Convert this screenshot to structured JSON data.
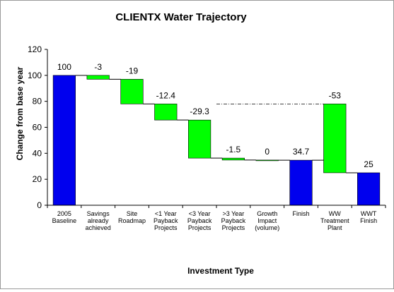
{
  "chart_data": {
    "type": "bar",
    "subtype": "waterfall",
    "title": "CLIENTX Water Trajectory",
    "xlabel": "Investment Type",
    "ylabel": "Change from base year",
    "ylim": [
      0,
      120
    ],
    "yticks": [
      "0",
      "20",
      "40",
      "60",
      "80",
      "100",
      "120"
    ],
    "ytick_values": [
      0,
      20,
      40,
      60,
      80,
      100,
      120
    ],
    "grid": false,
    "legend": "none",
    "colors": {
      "total": "#0000ee",
      "change": "#00ff00",
      "border": "#000000"
    },
    "categories": [
      [
        "2005",
        "Baseline"
      ],
      [
        "Savings",
        "already",
        "achieved"
      ],
      [
        "Site",
        "Roadmap"
      ],
      [
        "<1 Year",
        "Payback",
        "Projects"
      ],
      [
        "<3 Year",
        "Payback",
        "Projects"
      ],
      [
        ">3 Year",
        "Payback",
        "Projects"
      ],
      [
        "Growth",
        "Impact",
        "(volume)"
      ],
      [
        "Finish"
      ],
      [
        "WW",
        "Treatment",
        "Plant"
      ],
      [
        "WWT",
        "Finish"
      ]
    ],
    "bars": [
      {
        "kind": "total",
        "bottom": 0,
        "top": 100,
        "label": "100"
      },
      {
        "kind": "change",
        "bottom": 97,
        "top": 100,
        "label": "-3"
      },
      {
        "kind": "change",
        "bottom": 78,
        "top": 97,
        "label": "-19"
      },
      {
        "kind": "change",
        "bottom": 65.6,
        "top": 78,
        "label": "-12.4"
      },
      {
        "kind": "change",
        "bottom": 36.3,
        "top": 65.6,
        "label": "-29.3"
      },
      {
        "kind": "change",
        "bottom": 34.8,
        "top": 36.3,
        "label": "-1.5"
      },
      {
        "kind": "change",
        "bottom": 34.7,
        "top": 34.8,
        "label": "0"
      },
      {
        "kind": "total",
        "bottom": 0,
        "top": 34.7,
        "label": "34.7"
      },
      {
        "kind": "change",
        "bottom": 25,
        "top": 78,
        "label": "-53"
      },
      {
        "kind": "total",
        "bottom": 0,
        "top": 25,
        "label": "25"
      }
    ],
    "reference_line": {
      "value": 78,
      "style": "dash-dot"
    }
  }
}
